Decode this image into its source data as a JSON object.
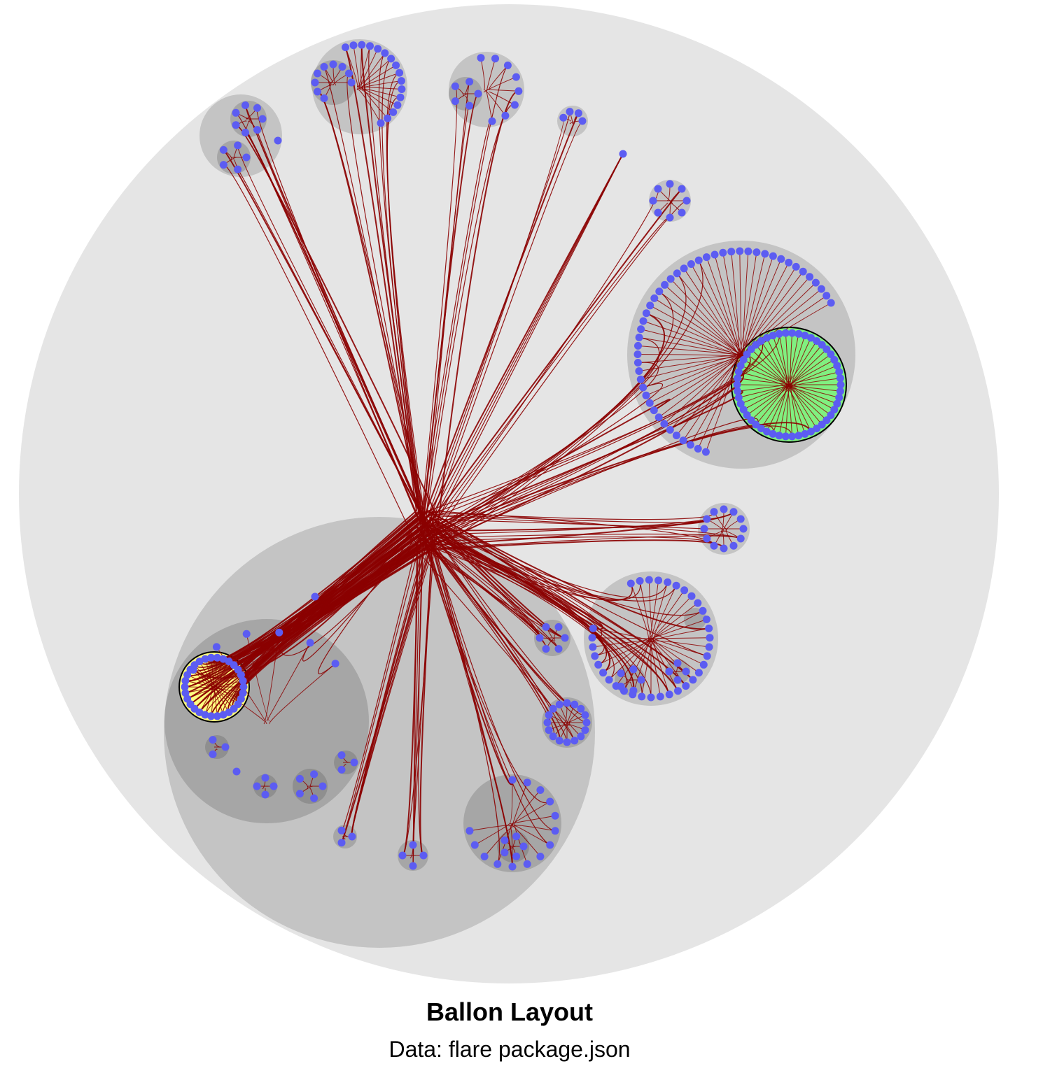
{
  "caption": {
    "title": "Ballon Layout",
    "subtitle": "Data: flare package.json"
  },
  "colors": {
    "background": "#ffffff",
    "level1_circle": "#e5e5e5",
    "level2_circle": "#c4c4c4",
    "level3_circle": "#a6a6a6",
    "leaf_node": "#5c5cf2",
    "edge": "#8b0000",
    "highlight_source": "#ffff80",
    "highlight_target": "#80f080"
  },
  "diagram": {
    "layout": "balloon",
    "node_shape": "circle",
    "edge_style": "bundled curves",
    "highlighted_clusters": [
      "source cluster (yellow)",
      "target cluster (green)"
    ]
  }
}
